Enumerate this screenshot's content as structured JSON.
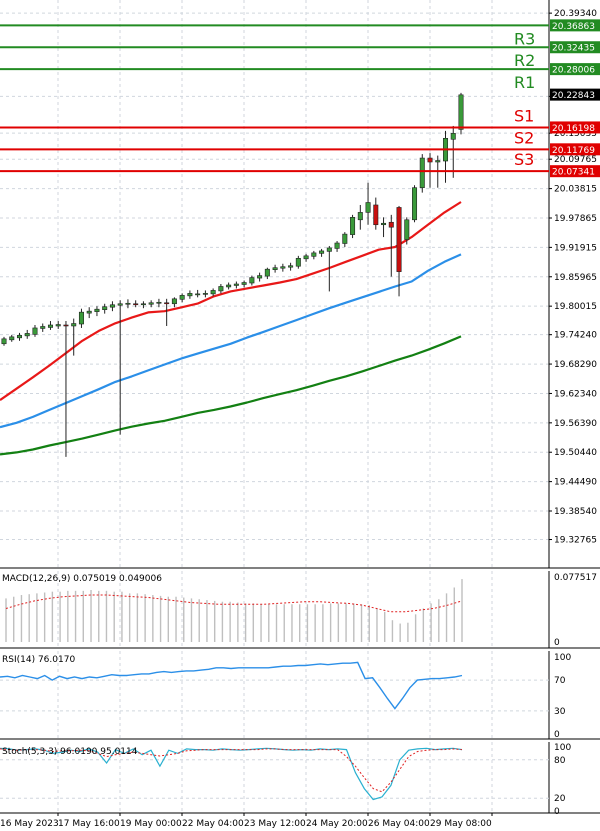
{
  "colors": {
    "grid": "#d0d6de",
    "axis": "#000000",
    "resistance": "#228b22",
    "support": "#e00000",
    "ma_fast": "#e81818",
    "ma_mid": "#2b8fe8",
    "ma_slow": "#138013",
    "bull": "#3a9a3a",
    "bear": "#c81010",
    "wick": "#222222",
    "price_tag": "#000000",
    "macd_hist": "#bfbfbf",
    "macd_signal": "#e02020",
    "rsi_line": "#2b8fe8",
    "stoch_main": "#2ab0d0",
    "stoch_signal": "#e02020"
  },
  "chart_data": [
    {
      "type": "candlestick",
      "ylim": [
        19.27,
        20.42
      ],
      "y_ticks": [
        "20.39340",
        "20.22490",
        "20.15035",
        "20.09765",
        "20.03815",
        "19.97865",
        "19.91915",
        "19.85965",
        "19.80015",
        "19.74240",
        "19.68290",
        "19.62340",
        "19.56390",
        "19.50440",
        "19.44490",
        "19.38540",
        "19.32765"
      ],
      "x_ticks": [
        "16 May 2023",
        "17 May 16:00",
        "19 May 00:00",
        "22 May 04:00",
        "23 May 12:00",
        "24 May 20:00",
        "26 May 04:00",
        "29 May 08:00"
      ],
      "levels": [
        {
          "name": "R3",
          "value": 20.36863,
          "label": "20.36863",
          "kind": "resistance"
        },
        {
          "name": "R2",
          "value": 20.32435,
          "label": "20.32435",
          "kind": "resistance"
        },
        {
          "name": "R1",
          "value": 20.28006,
          "label": "20.28006",
          "kind": "resistance"
        },
        {
          "name": "S1",
          "value": 20.16198,
          "label": "20.16198",
          "kind": "support"
        },
        {
          "name": "S2",
          "value": 20.11769,
          "label": "20.11769",
          "kind": "support"
        },
        {
          "name": "S3",
          "value": 20.07341,
          "label": "20.07341",
          "kind": "support"
        }
      ],
      "current_price": {
        "value": 20.22843,
        "label": "20.22843"
      },
      "candles_ohlc": [
        [
          19.724,
          19.738,
          19.72,
          19.734
        ],
        [
          19.732,
          19.742,
          19.728,
          19.738
        ],
        [
          19.736,
          19.746,
          19.73,
          19.741
        ],
        [
          19.74,
          19.752,
          19.734,
          19.745
        ],
        [
          19.743,
          19.762,
          19.738,
          19.756
        ],
        [
          19.755,
          19.765,
          19.748,
          19.759
        ],
        [
          19.757,
          19.77,
          19.752,
          19.762
        ],
        [
          19.76,
          19.77,
          19.754,
          19.763
        ],
        [
          19.762,
          19.77,
          19.495,
          19.76
        ],
        [
          19.76,
          19.775,
          19.7,
          19.765
        ],
        [
          19.764,
          19.795,
          19.756,
          19.788
        ],
        [
          19.786,
          19.798,
          19.776,
          19.79
        ],
        [
          19.789,
          19.8,
          19.78,
          19.794
        ],
        [
          19.793,
          19.805,
          19.785,
          19.799
        ],
        [
          19.798,
          19.81,
          19.79,
          19.803
        ],
        [
          19.802,
          19.812,
          19.54,
          19.805
        ],
        [
          19.804,
          19.814,
          19.796,
          19.806
        ],
        [
          19.805,
          19.812,
          19.798,
          19.804
        ],
        [
          19.803,
          19.81,
          19.796,
          19.805
        ],
        [
          19.804,
          19.812,
          19.798,
          19.807
        ],
        [
          19.806,
          19.815,
          19.798,
          19.808
        ],
        [
          19.807,
          19.815,
          19.76,
          19.806
        ],
        [
          19.805,
          19.818,
          19.798,
          19.815
        ],
        [
          19.814,
          19.826,
          19.808,
          19.822
        ],
        [
          19.821,
          19.832,
          19.815,
          19.826
        ],
        [
          19.825,
          19.833,
          19.818,
          19.825
        ],
        [
          19.824,
          19.832,
          19.818,
          19.826
        ],
        [
          19.825,
          19.836,
          19.82,
          19.832
        ],
        [
          19.831,
          19.845,
          19.826,
          19.84
        ],
        [
          19.839,
          19.848,
          19.834,
          19.843
        ],
        [
          19.842,
          19.85,
          19.836,
          19.845
        ],
        [
          19.844,
          19.852,
          19.838,
          19.848
        ],
        [
          19.847,
          19.862,
          19.842,
          19.858
        ],
        [
          19.857,
          19.868,
          19.85,
          19.862
        ],
        [
          19.861,
          19.878,
          19.855,
          19.875
        ],
        [
          19.874,
          19.884,
          19.868,
          19.878
        ],
        [
          19.877,
          19.886,
          19.87,
          19.88
        ],
        [
          19.879,
          19.888,
          19.872,
          19.882
        ],
        [
          19.881,
          19.902,
          19.876,
          19.897
        ],
        [
          19.896,
          19.906,
          19.89,
          19.902
        ],
        [
          19.901,
          19.912,
          19.895,
          19.908
        ],
        [
          19.907,
          19.916,
          19.9,
          19.912
        ],
        [
          19.911,
          19.922,
          19.83,
          19.918
        ],
        [
          19.917,
          19.932,
          19.91,
          19.928
        ],
        [
          19.927,
          19.95,
          19.92,
          19.946
        ],
        [
          19.945,
          19.985,
          19.938,
          19.98
        ],
        [
          19.975,
          20.005,
          19.955,
          19.99
        ],
        [
          19.99,
          20.05,
          19.965,
          20.01
        ],
        [
          20.005,
          20.02,
          19.955,
          19.965
        ],
        [
          19.965,
          19.98,
          19.94,
          19.968
        ],
        [
          19.97,
          19.985,
          19.86,
          19.96
        ],
        [
          20.0,
          20.003,
          19.82,
          19.87
        ],
        [
          19.935,
          19.98,
          19.925,
          19.975
        ],
        [
          19.975,
          20.045,
          19.97,
          20.04
        ],
        [
          20.04,
          20.108,
          20.03,
          20.1
        ],
        [
          20.1,
          20.11,
          20.04,
          20.092
        ],
        [
          20.092,
          20.105,
          20.04,
          20.095
        ],
        [
          20.094,
          20.155,
          20.05,
          20.14
        ],
        [
          20.138,
          20.165,
          20.06,
          20.15
        ],
        [
          20.158,
          20.232,
          20.148,
          20.228
        ]
      ],
      "ma_fast": [
        19.61,
        19.633,
        19.656,
        19.68,
        19.705,
        19.73,
        19.75,
        19.7655,
        19.777,
        19.7874,
        19.79,
        19.7976,
        19.8054,
        19.82,
        19.83,
        19.836,
        19.842,
        19.848,
        19.855,
        19.866,
        19.8774,
        19.89,
        19.902,
        19.9144,
        19.92,
        19.94,
        19.9652,
        19.99,
        20.011
      ],
      "ma_mid": [
        19.555,
        19.564,
        19.576,
        19.59,
        19.604,
        19.618,
        19.632,
        19.6467,
        19.658,
        19.67,
        19.682,
        19.694,
        19.704,
        19.714,
        19.724,
        19.7365,
        19.748,
        19.76,
        19.772,
        19.784,
        19.796,
        19.8072,
        19.818,
        19.829,
        19.84,
        19.85,
        19.872,
        19.89,
        19.905
      ],
      "ma_slow": [
        19.5,
        19.504,
        19.51,
        19.518,
        19.525,
        19.532,
        19.54,
        19.5486,
        19.556,
        19.5625,
        19.568,
        19.576,
        19.584,
        19.59,
        19.597,
        19.605,
        19.614,
        19.622,
        19.63,
        19.639,
        19.649,
        19.658,
        19.668,
        19.679,
        19.69,
        19.7,
        19.712,
        19.725,
        19.739
      ]
    },
    {
      "type": "bar",
      "title": "MACD(12,26,9) 0.075019 0.049006",
      "y_ticks": [
        "0.077517",
        "0"
      ],
      "ylim": [
        0,
        0.0775
      ],
      "histogram": [
        0.052,
        0.054,
        0.056,
        0.057,
        0.058,
        0.059,
        0.06,
        0.06,
        0.061,
        0.061,
        0.061,
        0.062,
        0.061,
        0.061,
        0.06,
        0.06,
        0.058,
        0.058,
        0.057,
        0.056,
        0.055,
        0.054,
        0.054,
        0.053,
        0.052,
        0.051,
        0.05,
        0.049,
        0.048,
        0.048,
        0.047,
        0.046,
        0.046,
        0.045,
        0.045,
        0.045,
        0.045,
        0.045,
        0.045,
        0.045,
        0.045,
        0.045,
        0.046,
        0.046,
        0.046,
        0.046,
        0.045,
        0.044,
        0.04,
        0.036,
        0.026,
        0.022,
        0.023,
        0.033,
        0.04,
        0.046,
        0.051,
        0.058,
        0.065,
        0.075
      ],
      "signal": [
        0.04,
        0.045,
        0.049,
        0.052,
        0.054,
        0.055,
        0.056,
        0.056,
        0.055,
        0.054,
        0.053,
        0.051,
        0.049,
        0.047,
        0.046,
        0.045,
        0.045,
        0.045,
        0.045,
        0.046,
        0.047,
        0.048,
        0.048,
        0.047,
        0.046,
        0.044,
        0.04,
        0.036,
        0.036,
        0.038,
        0.04,
        0.044,
        0.049
      ]
    },
    {
      "type": "line",
      "title": "RSI(14) 76.0170",
      "y_ticks": [
        "100",
        "70",
        "30",
        "0"
      ],
      "ylim": [
        0,
        100
      ],
      "values": [
        74,
        75,
        73,
        76,
        74,
        72,
        76,
        70,
        75,
        72,
        74,
        72,
        74,
        73,
        75,
        77,
        76,
        76,
        77,
        78,
        78,
        80,
        81,
        80,
        81,
        82,
        82,
        83,
        84,
        86,
        86,
        85,
        86,
        86,
        86,
        86,
        86,
        87,
        88,
        88,
        89,
        89,
        90,
        91,
        90,
        91,
        92,
        92,
        93,
        72,
        73,
        60,
        46,
        33,
        46,
        60,
        70,
        71,
        72,
        72,
        73,
        74,
        76
      ]
    },
    {
      "type": "line",
      "title": "Stoch(5,3,3) 96.0190 95.0114",
      "y_ticks": [
        "100",
        "80",
        "20",
        "0"
      ],
      "ylim": [
        0,
        100
      ],
      "main": [
        98,
        97,
        95,
        96,
        97,
        95,
        90,
        92,
        95,
        93,
        97,
        92,
        75,
        96,
        90,
        97,
        88,
        95,
        70,
        95,
        90,
        97,
        96,
        96,
        95,
        97,
        96,
        95,
        96,
        97,
        98,
        97,
        96,
        95,
        96,
        95,
        97,
        96,
        97,
        96,
        60,
        35,
        18,
        22,
        40,
        80,
        95,
        97,
        98,
        96,
        97,
        98,
        96
      ],
      "signal": [
        97,
        96,
        95,
        96,
        96,
        95,
        93,
        94,
        94,
        95,
        94,
        90,
        85,
        88,
        90,
        92,
        90,
        88,
        86,
        88,
        90,
        94,
        95,
        96,
        96,
        96,
        96,
        96,
        96,
        96,
        97,
        97,
        96,
        96,
        96,
        96,
        96,
        96,
        96,
        85,
        70,
        52,
        35,
        30,
        45,
        65,
        85,
        93,
        95,
        96,
        96,
        97,
        96
      ]
    }
  ]
}
